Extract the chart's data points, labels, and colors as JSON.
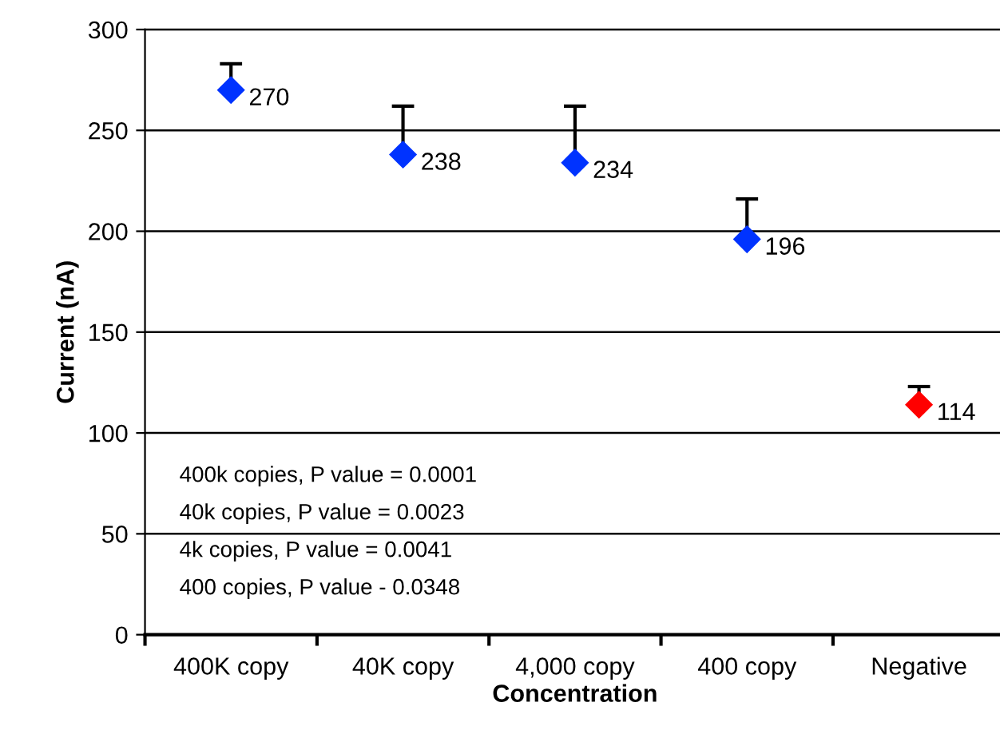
{
  "chart_data": {
    "type": "scatter",
    "xlabel": "Concentration",
    "ylabel": "Current (nA)",
    "categories": [
      "400K copy",
      "40K copy",
      "4,000 copy",
      "400 copy",
      "Negative"
    ],
    "values": [
      270,
      238,
      234,
      196,
      114
    ],
    "colors": [
      "#0033ff",
      "#0033ff",
      "#0033ff",
      "#0033ff",
      "#ff0000"
    ],
    "errors": [
      [
        270,
        283
      ],
      [
        238,
        262
      ],
      [
        234,
        262
      ],
      [
        196,
        216
      ],
      [
        114,
        123
      ]
    ],
    "data_labels": true,
    "marker": "diamond",
    "grid": "y",
    "legend": false,
    "ylim": [
      0,
      300
    ],
    "yticks": [
      0,
      50,
      100,
      150,
      200,
      250,
      300
    ],
    "annotations": [
      "400k copies, P value = 0.0001",
      "40k copies, P value = 0.0023",
      "4k copies, P value = 0.0041",
      "400 copies, P value - 0.0348"
    ]
  }
}
